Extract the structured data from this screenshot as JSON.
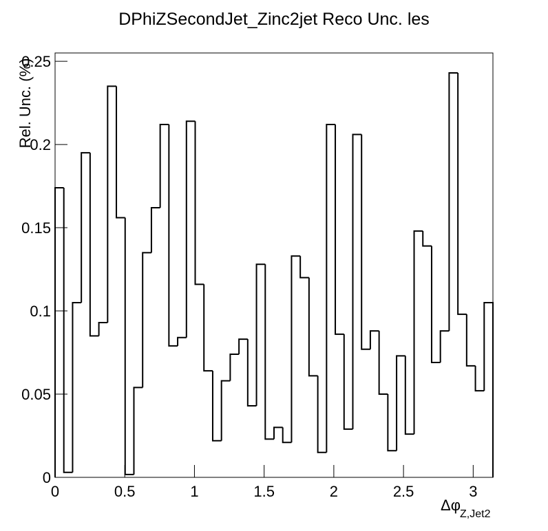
{
  "chart_data": {
    "type": "histogram",
    "title": "DPhiZSecondJet_Zinc2jet Reco Unc. les",
    "y_label": "Rel. Unc. (%)",
    "x_label": "Δφ",
    "x_label_sub": "Z,Jet2",
    "color": "#000000",
    "bins": [
      0,
      0.0628,
      0.1257,
      0.1885,
      0.2513,
      0.3142,
      0.377,
      0.4398,
      0.5027,
      0.5655,
      0.6283,
      0.6912,
      0.754,
      0.8168,
      0.8796,
      0.9425,
      1.0053,
      1.0681,
      1.131,
      1.1938,
      1.2566,
      1.3195,
      1.3823,
      1.4451,
      1.508,
      1.5708,
      1.6336,
      1.6965,
      1.7593,
      1.8221,
      1.885,
      1.9478,
      2.0106,
      2.0735,
      2.1363,
      2.1991,
      2.2619,
      2.3248,
      2.3876,
      2.4504,
      2.5133,
      2.5761,
      2.6389,
      2.7018,
      2.7646,
      2.8274,
      2.8903,
      2.9531,
      3.0159,
      3.0788,
      3.1416
    ],
    "values": [
      0.174,
      0.003,
      0.105,
      0.195,
      0.085,
      0.093,
      0.235,
      0.156,
      0.0017,
      0.054,
      0.135,
      0.162,
      0.212,
      0.079,
      0.084,
      0.214,
      0.116,
      0.064,
      0.022,
      0.058,
      0.074,
      0.083,
      0.043,
      0.128,
      0.023,
      0.03,
      0.021,
      0.133,
      0.12,
      0.061,
      0.015,
      0.212,
      0.086,
      0.029,
      0.206,
      0.077,
      0.088,
      0.05,
      0.016,
      0.073,
      0.026,
      0.148,
      0.139,
      0.069,
      0.088,
      0.243,
      0.098,
      0.067,
      0.052,
      0.105
    ],
    "xlim": [
      0,
      3.1416
    ],
    "ylim": [
      0,
      0.255
    ],
    "xticks": [
      0,
      0.5,
      1,
      1.5,
      2,
      2.5,
      3
    ],
    "yticks": [
      0,
      0.05,
      0.1,
      0.15,
      0.2,
      0.25
    ]
  }
}
